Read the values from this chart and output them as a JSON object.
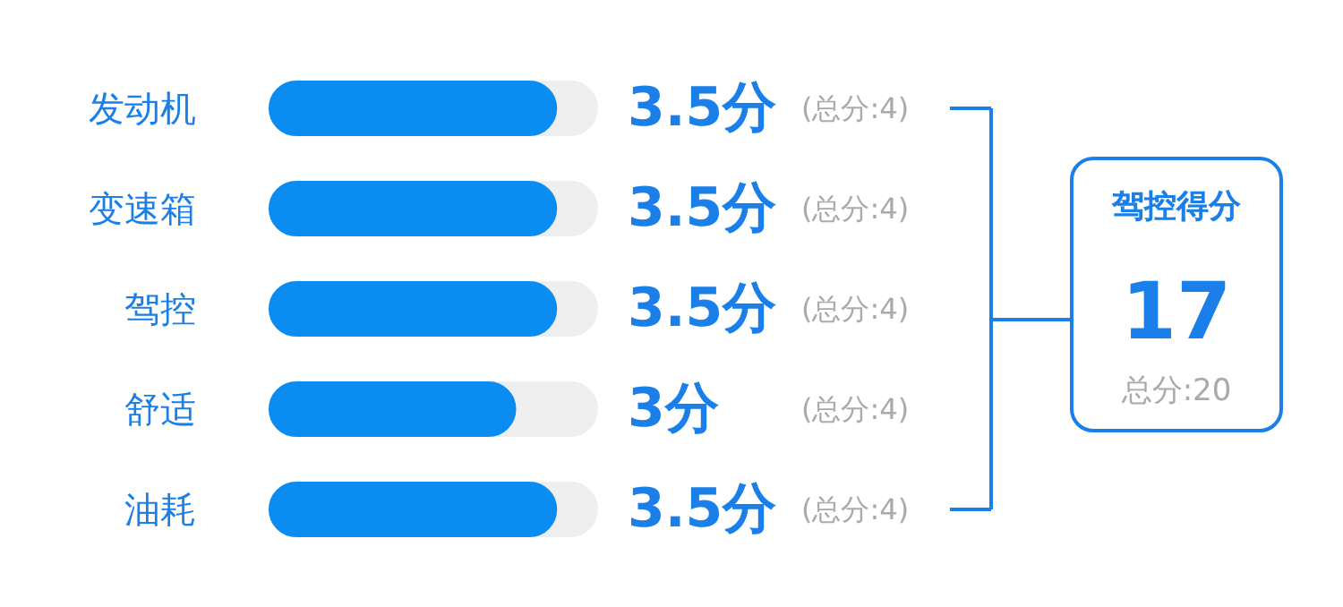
{
  "chart_data": {
    "type": "bar",
    "orientation": "horizontal",
    "categories": [
      "发动机",
      "变速箱",
      "驾控",
      "舒适",
      "油耗"
    ],
    "values": [
      3.5,
      3.5,
      3.5,
      3,
      3.5
    ],
    "value_labels": [
      "3.5分",
      "3.5分",
      "3.5分",
      "3分",
      "3.5分"
    ],
    "color": "#0a8cf0",
    "xlim": [
      0,
      4
    ],
    "tick_labels": "y",
    "grid": false,
    "annotations": [
      "(总分:4)",
      "(总分:4)",
      "(总分:4)",
      "(总分:4)",
      "(总分:4)",
      "驾控得分",
      "17",
      "总分:20"
    ]
  }
}
